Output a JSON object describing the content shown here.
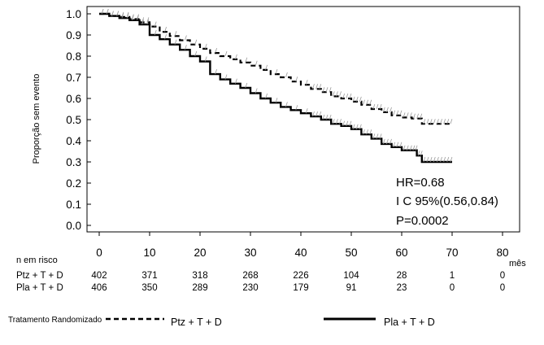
{
  "chart_data": {
    "type": "line",
    "ylabel": "Proporção sem evento",
    "xlabel": "mês",
    "xlim": [
      0,
      80
    ],
    "ylim": [
      0,
      1.0
    ],
    "x_ticks": [
      "0",
      "10",
      "20",
      "30",
      "40",
      "50",
      "60",
      "70",
      "80"
    ],
    "y_ticks": [
      "0.0",
      "0.1",
      "0.2",
      "0.3",
      "0.4",
      "0.5",
      "0.6",
      "0.7",
      "0.8",
      "0.9",
      "1.0"
    ],
    "series": [
      {
        "name": "Ptz + T + D",
        "style": "dashed",
        "color": "#000000",
        "x": [
          0,
          2,
          4,
          6,
          8,
          10,
          12,
          14,
          16,
          18,
          20,
          22,
          24,
          26,
          28,
          30,
          32,
          34,
          36,
          38,
          40,
          42,
          44,
          46,
          48,
          50,
          52,
          54,
          56,
          58,
          60,
          62,
          64,
          66,
          68,
          70
        ],
        "y": [
          1.0,
          0.99,
          0.985,
          0.975,
          0.96,
          0.94,
          0.915,
          0.895,
          0.875,
          0.855,
          0.835,
          0.815,
          0.8,
          0.785,
          0.77,
          0.755,
          0.735,
          0.715,
          0.7,
          0.68,
          0.665,
          0.645,
          0.63,
          0.61,
          0.6,
          0.585,
          0.57,
          0.55,
          0.535,
          0.52,
          0.51,
          0.505,
          0.48,
          0.48,
          0.48,
          0.48
        ]
      },
      {
        "name": "Pla + T + D",
        "style": "solid",
        "color": "#000000",
        "x": [
          0,
          2,
          4,
          6,
          8,
          10,
          12,
          14,
          16,
          18,
          20,
          22,
          24,
          26,
          28,
          30,
          32,
          34,
          36,
          38,
          40,
          42,
          44,
          46,
          48,
          50,
          52,
          54,
          56,
          58,
          60,
          62,
          63,
          64,
          66,
          68,
          70
        ],
        "y": [
          1.0,
          0.99,
          0.98,
          0.97,
          0.95,
          0.9,
          0.88,
          0.855,
          0.83,
          0.8,
          0.775,
          0.715,
          0.69,
          0.67,
          0.65,
          0.625,
          0.6,
          0.58,
          0.56,
          0.545,
          0.53,
          0.515,
          0.5,
          0.48,
          0.47,
          0.455,
          0.43,
          0.41,
          0.385,
          0.37,
          0.355,
          0.355,
          0.33,
          0.3,
          0.3,
          0.3,
          0.3
        ]
      }
    ],
    "annotations": [
      "HR=0.68",
      "I C 95%(0.56,0.84)",
      "P=0.0002"
    ],
    "legend_placement": "bottom"
  },
  "risk_table": {
    "title": "n em risco",
    "rows": [
      {
        "label": "Ptz + T + D",
        "values": [
          "402",
          "371",
          "318",
          "268",
          "226",
          "104",
          "28",
          "1",
          "0"
        ]
      },
      {
        "label": "Pla + T + D",
        "values": [
          "406",
          "350",
          "289",
          "230",
          "179",
          "91",
          "23",
          "0",
          "0"
        ]
      }
    ]
  },
  "legend": {
    "title": "Tratamento Randomizado",
    "items": [
      "Ptz + T + D",
      "Pla + T + D"
    ]
  }
}
